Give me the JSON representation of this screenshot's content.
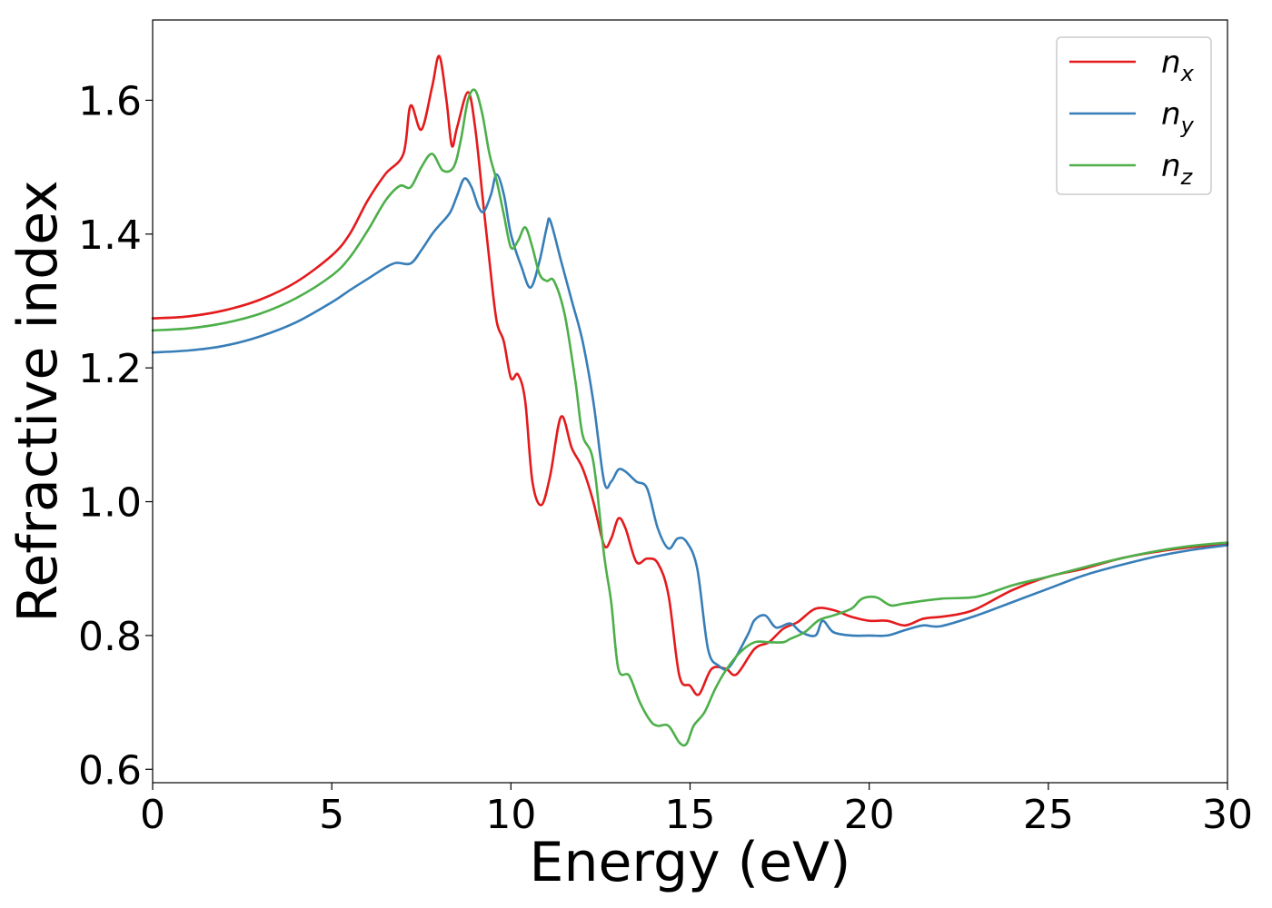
{
  "chart_data": {
    "type": "line",
    "xlabel": "Energy (eV)",
    "ylabel": "Refractive index",
    "xlim": [
      0,
      30
    ],
    "ylim": [
      0.58,
      1.72
    ],
    "xticks": [
      "0",
      "5",
      "10",
      "15",
      "20",
      "25",
      "30"
    ],
    "yticks": [
      "0.6",
      "0.8",
      "1.0",
      "1.2",
      "1.4",
      "1.6"
    ],
    "grid": false,
    "legend_position": "top-right",
    "series": [
      {
        "name": "n",
        "subscript": "x",
        "color": "#e41a1c",
        "points": [
          [
            0,
            1.274
          ],
          [
            1,
            1.277
          ],
          [
            2,
            1.286
          ],
          [
            3,
            1.302
          ],
          [
            4,
            1.328
          ],
          [
            5,
            1.368
          ],
          [
            5.5,
            1.4
          ],
          [
            6,
            1.45
          ],
          [
            6.5,
            1.49
          ],
          [
            7,
            1.52
          ],
          [
            7.2,
            1.592
          ],
          [
            7.5,
            1.556
          ],
          [
            7.8,
            1.62
          ],
          [
            8,
            1.666
          ],
          [
            8.2,
            1.6
          ],
          [
            8.35,
            1.532
          ],
          [
            8.5,
            1.56
          ],
          [
            8.8,
            1.612
          ],
          [
            9,
            1.56
          ],
          [
            9.2,
            1.46
          ],
          [
            9.4,
            1.36
          ],
          [
            9.6,
            1.27
          ],
          [
            9.8,
            1.24
          ],
          [
            10,
            1.185
          ],
          [
            10.2,
            1.19
          ],
          [
            10.4,
            1.15
          ],
          [
            10.6,
            1.03
          ],
          [
            10.85,
            0.995
          ],
          [
            11.1,
            1.04
          ],
          [
            11.4,
            1.127
          ],
          [
            11.7,
            1.08
          ],
          [
            12,
            1.05
          ],
          [
            12.3,
            1.0
          ],
          [
            12.6,
            0.935
          ],
          [
            12.8,
            0.945
          ],
          [
            13,
            0.975
          ],
          [
            13.2,
            0.96
          ],
          [
            13.5,
            0.91
          ],
          [
            13.8,
            0.915
          ],
          [
            14.1,
            0.908
          ],
          [
            14.4,
            0.86
          ],
          [
            14.7,
            0.74
          ],
          [
            15,
            0.725
          ],
          [
            15.25,
            0.712
          ],
          [
            15.6,
            0.75
          ],
          [
            16,
            0.75
          ],
          [
            16.3,
            0.742
          ],
          [
            16.8,
            0.78
          ],
          [
            17.2,
            0.79
          ],
          [
            17.6,
            0.81
          ],
          [
            18,
            0.82
          ],
          [
            18.5,
            0.84
          ],
          [
            19,
            0.838
          ],
          [
            19.5,
            0.828
          ],
          [
            20,
            0.822
          ],
          [
            20.5,
            0.822
          ],
          [
            21,
            0.815
          ],
          [
            21.5,
            0.825
          ],
          [
            22,
            0.828
          ],
          [
            22.5,
            0.832
          ],
          [
            23,
            0.84
          ],
          [
            24,
            0.868
          ],
          [
            25,
            0.888
          ],
          [
            26,
            0.9
          ],
          [
            27,
            0.915
          ],
          [
            28,
            0.925
          ],
          [
            29,
            0.932
          ],
          [
            30,
            0.937
          ]
        ]
      },
      {
        "name": "n",
        "subscript": "y",
        "color": "#377eb8",
        "points": [
          [
            0,
            1.223
          ],
          [
            1,
            1.226
          ],
          [
            2,
            1.233
          ],
          [
            3,
            1.247
          ],
          [
            4,
            1.268
          ],
          [
            5,
            1.298
          ],
          [
            5.5,
            1.316
          ],
          [
            6,
            1.333
          ],
          [
            6.5,
            1.35
          ],
          [
            6.8,
            1.357
          ],
          [
            7.2,
            1.356
          ],
          [
            7.5,
            1.376
          ],
          [
            7.8,
            1.4
          ],
          [
            8,
            1.413
          ],
          [
            8.3,
            1.432
          ],
          [
            8.5,
            1.458
          ],
          [
            8.7,
            1.483
          ],
          [
            8.9,
            1.47
          ],
          [
            9.1,
            1.44
          ],
          [
            9.25,
            1.434
          ],
          [
            9.45,
            1.46
          ],
          [
            9.6,
            1.489
          ],
          [
            9.8,
            1.46
          ],
          [
            10,
            1.4
          ],
          [
            10.3,
            1.35
          ],
          [
            10.55,
            1.32
          ],
          [
            10.8,
            1.36
          ],
          [
            11,
            1.41
          ],
          [
            11.1,
            1.42
          ],
          [
            11.4,
            1.36
          ],
          [
            11.7,
            1.3
          ],
          [
            12,
            1.24
          ],
          [
            12.3,
            1.15
          ],
          [
            12.6,
            1.03
          ],
          [
            12.8,
            1.03
          ],
          [
            13,
            1.048
          ],
          [
            13.2,
            1.045
          ],
          [
            13.5,
            1.03
          ],
          [
            13.8,
            1.02
          ],
          [
            14.1,
            0.96
          ],
          [
            14.4,
            0.93
          ],
          [
            14.65,
            0.945
          ],
          [
            14.9,
            0.94
          ],
          [
            15.2,
            0.9
          ],
          [
            15.5,
            0.78
          ],
          [
            15.8,
            0.755
          ],
          [
            16.1,
            0.753
          ],
          [
            16.6,
            0.8
          ],
          [
            16.8,
            0.823
          ],
          [
            17.1,
            0.83
          ],
          [
            17.4,
            0.812
          ],
          [
            17.8,
            0.818
          ],
          [
            18.1,
            0.805
          ],
          [
            18.5,
            0.8
          ],
          [
            18.7,
            0.822
          ],
          [
            19,
            0.805
          ],
          [
            19.5,
            0.8
          ],
          [
            20,
            0.8
          ],
          [
            20.5,
            0.8
          ],
          [
            21,
            0.808
          ],
          [
            21.5,
            0.815
          ],
          [
            22,
            0.814
          ],
          [
            23,
            0.83
          ],
          [
            24,
            0.85
          ],
          [
            25,
            0.87
          ],
          [
            26,
            0.89
          ],
          [
            27,
            0.905
          ],
          [
            28,
            0.918
          ],
          [
            29,
            0.928
          ],
          [
            30,
            0.935
          ]
        ]
      },
      {
        "name": "n",
        "subscript": "z",
        "color": "#4daf4a",
        "points": [
          [
            0,
            1.256
          ],
          [
            1,
            1.259
          ],
          [
            2,
            1.267
          ],
          [
            3,
            1.281
          ],
          [
            4,
            1.304
          ],
          [
            5,
            1.338
          ],
          [
            5.5,
            1.365
          ],
          [
            6,
            1.405
          ],
          [
            6.5,
            1.45
          ],
          [
            6.9,
            1.472
          ],
          [
            7.2,
            1.47
          ],
          [
            7.5,
            1.5
          ],
          [
            7.8,
            1.52
          ],
          [
            8.1,
            1.495
          ],
          [
            8.4,
            1.5
          ],
          [
            8.6,
            1.54
          ],
          [
            8.8,
            1.6
          ],
          [
            9,
            1.615
          ],
          [
            9.2,
            1.58
          ],
          [
            9.4,
            1.52
          ],
          [
            9.6,
            1.48
          ],
          [
            9.8,
            1.43
          ],
          [
            10,
            1.38
          ],
          [
            10.2,
            1.39
          ],
          [
            10.4,
            1.41
          ],
          [
            10.6,
            1.38
          ],
          [
            10.8,
            1.34
          ],
          [
            11,
            1.33
          ],
          [
            11.2,
            1.33
          ],
          [
            11.5,
            1.28
          ],
          [
            11.8,
            1.18
          ],
          [
            12,
            1.1
          ],
          [
            12.3,
            1.06
          ],
          [
            12.6,
            0.92
          ],
          [
            12.8,
            0.85
          ],
          [
            13,
            0.75
          ],
          [
            13.3,
            0.74
          ],
          [
            13.6,
            0.7
          ],
          [
            13.9,
            0.672
          ],
          [
            14.1,
            0.665
          ],
          [
            14.4,
            0.665
          ],
          [
            14.7,
            0.64
          ],
          [
            14.9,
            0.638
          ],
          [
            15.1,
            0.665
          ],
          [
            15.4,
            0.685
          ],
          [
            15.7,
            0.72
          ],
          [
            16,
            0.748
          ],
          [
            16.4,
            0.775
          ],
          [
            16.8,
            0.79
          ],
          [
            17.2,
            0.79
          ],
          [
            17.6,
            0.79
          ],
          [
            17.8,
            0.795
          ],
          [
            18.2,
            0.805
          ],
          [
            18.6,
            0.823
          ],
          [
            19,
            0.83
          ],
          [
            19.5,
            0.84
          ],
          [
            19.8,
            0.855
          ],
          [
            20.2,
            0.857
          ],
          [
            20.6,
            0.845
          ],
          [
            21,
            0.848
          ],
          [
            22,
            0.855
          ],
          [
            23,
            0.858
          ],
          [
            24,
            0.875
          ],
          [
            25,
            0.888
          ],
          [
            26,
            0.902
          ],
          [
            27,
            0.915
          ],
          [
            28,
            0.926
          ],
          [
            29,
            0.934
          ],
          [
            30,
            0.939
          ]
        ]
      }
    ]
  }
}
